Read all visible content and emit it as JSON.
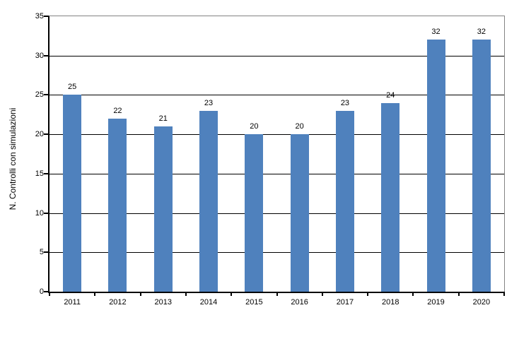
{
  "chart_data": {
    "type": "bar",
    "title": "",
    "xlabel": "",
    "ylabel": "N. Controlli con simulazioni",
    "categories": [
      "2011",
      "2012",
      "2013",
      "2014",
      "2015",
      "2016",
      "2017",
      "2018",
      "2019",
      "2020"
    ],
    "values": [
      25,
      22,
      21,
      23,
      20,
      20,
      23,
      24,
      32,
      32
    ],
    "ylim": [
      0,
      35
    ],
    "yticks": [
      0,
      5,
      10,
      15,
      20,
      25,
      30,
      35
    ],
    "grid": true,
    "legend": "none",
    "bar_labels_visible": true,
    "colors": {
      "bar": "#4F81BD",
      "gridline": "#000000",
      "axis": "#000000",
      "plot_border": "#848484",
      "background": "#FFFFFF",
      "text": "#000000"
    }
  }
}
